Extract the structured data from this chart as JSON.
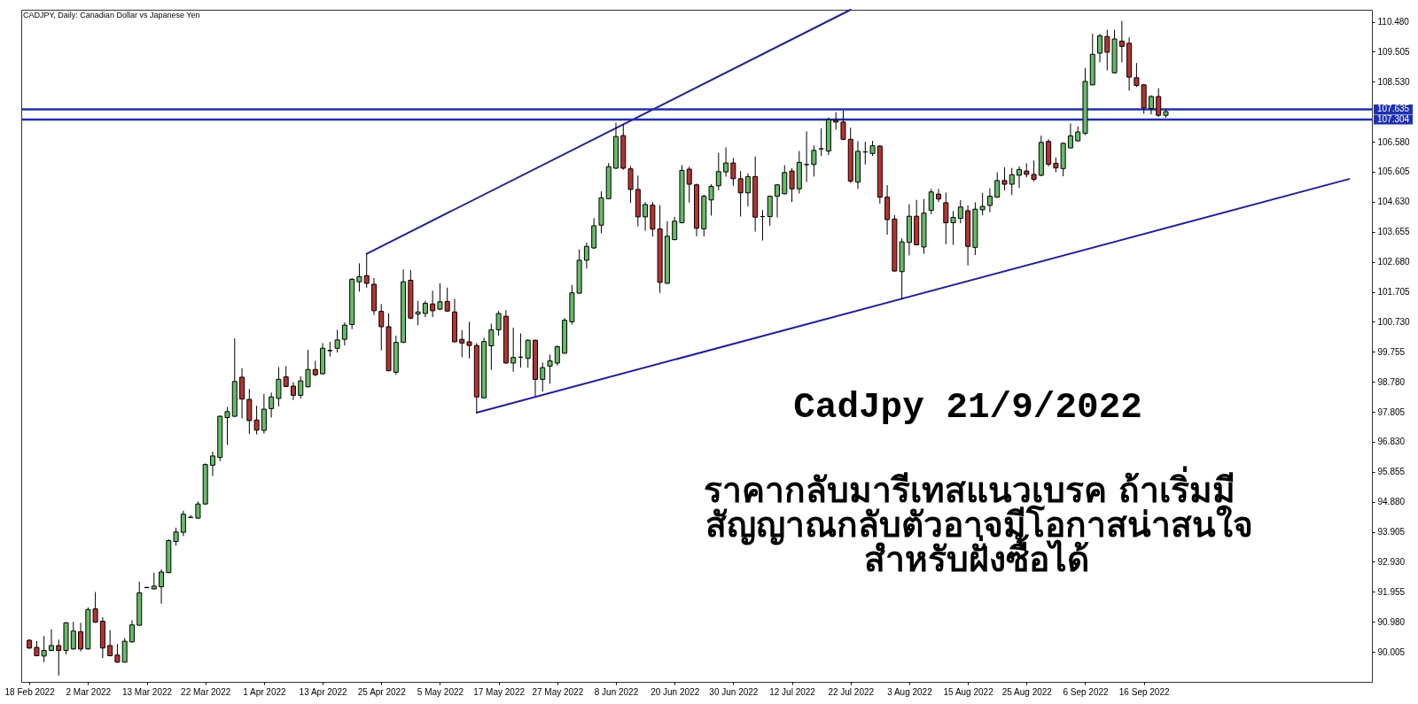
{
  "chart_data": {
    "type": "candlestick",
    "title": "CADJPY, Daily: Canadian Dollar vs Japanese Yen",
    "annotations": [
      "CadJpy 21/9/2022",
      "ราคากลับมารีเทสแนวเบรค ถ้าเริ่มมี",
      "สัญญาณกลับตัวอาจมีโอกาสน่าสนใจ",
      "สำหรับฝั่งซื้อได้"
    ],
    "categories": [
      "18 Feb 2022",
      null,
      null,
      null,
      null,
      null,
      null,
      null,
      "2 Mar 2022",
      null,
      null,
      null,
      null,
      null,
      null,
      null,
      "13 Mar 2022",
      null,
      null,
      null,
      null,
      null,
      null,
      null,
      "22 Mar 2022",
      null,
      null,
      null,
      null,
      null,
      null,
      null,
      "1 Apr 2022",
      null,
      null,
      null,
      null,
      null,
      null,
      null,
      "13 Apr 2022",
      null,
      null,
      null,
      null,
      null,
      null,
      null,
      "25 Apr 2022",
      null,
      null,
      null,
      null,
      null,
      null,
      null,
      "5 May 2022",
      null,
      null,
      null,
      null,
      null,
      null,
      null,
      "17 May 2022",
      null,
      null,
      null,
      null,
      null,
      null,
      null,
      "27 May 2022",
      null,
      null,
      null,
      null,
      null,
      null,
      null,
      "8 Jun 2022",
      null,
      null,
      null,
      null,
      null,
      null,
      null,
      "20 Jun 2022",
      null,
      null,
      null,
      null,
      null,
      null,
      null,
      "30 Jun 2022",
      null,
      null,
      null,
      null,
      null,
      null,
      null,
      "12 Jul 2022",
      null,
      null,
      null,
      null,
      null,
      null,
      null,
      "22 Jul 2022",
      null,
      null,
      null,
      null,
      null,
      null,
      null,
      "3 Aug 2022",
      null,
      null,
      null,
      null,
      null,
      null,
      null,
      "15 Aug 2022",
      null,
      null,
      null,
      null,
      null,
      null,
      null,
      "25 Aug 2022",
      null,
      null,
      null,
      null,
      null,
      null,
      null,
      "6 Sep 2022",
      null,
      null,
      null,
      null,
      null,
      null,
      null,
      "16 Sep 2022",
      null,
      null,
      null,
      null,
      null,
      null,
      null,
      null,
      null,
      null,
      null,
      null,
      null,
      null,
      null,
      null,
      null,
      null,
      null,
      null,
      null,
      null,
      null,
      null,
      null,
      null,
      null,
      null,
      null,
      null
    ],
    "ohlc": [
      [
        90.38,
        90.42,
        90.1,
        90.13
      ],
      [
        90.15,
        90.36,
        89.86,
        89.88
      ],
      [
        89.87,
        90.52,
        89.67,
        90.05
      ],
      [
        90.05,
        90.74,
        90.03,
        90.21
      ],
      [
        90.21,
        90.4,
        89.23,
        90.05
      ],
      [
        90.05,
        90.97,
        89.93,
        90.95
      ],
      [
        90.1,
        90.98,
        90.08,
        90.68
      ],
      [
        90.66,
        90.95,
        90.02,
        90.1
      ],
      [
        90.1,
        91.45,
        90.08,
        91.38
      ],
      [
        91.4,
        91.95,
        90.95,
        90.97
      ],
      [
        91.0,
        91.13,
        89.8,
        90.13
      ],
      [
        90.21,
        90.71,
        89.86,
        89.88
      ],
      [
        89.9,
        90.26,
        89.65,
        89.67
      ],
      [
        89.67,
        90.45,
        89.66,
        90.35
      ],
      [
        90.33,
        91.03,
        90.31,
        90.88
      ],
      [
        90.87,
        92.29,
        90.85,
        91.92
      ],
      [
        92.09,
        92.12,
        92.08,
        92.1
      ],
      [
        92.05,
        92.58,
        92.04,
        92.14
      ],
      [
        92.12,
        92.69,
        91.57,
        92.6
      ],
      [
        92.58,
        93.66,
        92.56,
        93.62
      ],
      [
        93.59,
        94.04,
        93.46,
        93.9
      ],
      [
        93.89,
        94.59,
        93.77,
        94.48
      ],
      [
        94.37,
        94.45,
        94.35,
        94.38
      ],
      [
        94.35,
        94.89,
        94.33,
        94.81
      ],
      [
        94.81,
        96.13,
        94.79,
        96.09
      ],
      [
        96.07,
        96.51,
        95.72,
        96.37
      ],
      [
        96.32,
        97.69,
        96.2,
        97.66
      ],
      [
        97.62,
        97.96,
        96.73,
        97.81
      ],
      [
        97.66,
        100.19,
        97.64,
        98.79
      ],
      [
        98.93,
        99.22,
        97.59,
        98.22
      ],
      [
        98.21,
        98.55,
        97.09,
        97.52
      ],
      [
        97.54,
        98.0,
        97.07,
        97.21
      ],
      [
        97.2,
        98.39,
        97.1,
        97.89
      ],
      [
        97.91,
        98.43,
        97.62,
        98.29
      ],
      [
        98.24,
        99.26,
        97.98,
        98.86
      ],
      [
        98.94,
        99.29,
        98.61,
        98.63
      ],
      [
        98.64,
        98.77,
        98.19,
        98.34
      ],
      [
        98.34,
        98.96,
        98.24,
        98.81
      ],
      [
        98.62,
        99.82,
        98.6,
        99.18
      ],
      [
        99.18,
        99.46,
        98.96,
        99.01
      ],
      [
        99.04,
        100.04,
        99.02,
        99.87
      ],
      [
        99.79,
        100.08,
        99.6,
        99.8
      ],
      [
        99.87,
        100.47,
        99.73,
        100.14
      ],
      [
        100.16,
        100.71,
        99.96,
        100.62
      ],
      [
        100.64,
        102.15,
        100.49,
        102.11
      ],
      [
        102.03,
        102.63,
        101.71,
        102.2
      ],
      [
        102.23,
        102.94,
        101.84,
        101.98
      ],
      [
        101.95,
        102.15,
        100.95,
        101.09
      ],
      [
        101.07,
        101.31,
        99.8,
        100.57
      ],
      [
        100.57,
        101.01,
        99.12,
        99.14
      ],
      [
        99.09,
        100.28,
        99.01,
        100.06
      ],
      [
        100.06,
        102.43,
        100.04,
        102.03
      ],
      [
        102.08,
        102.41,
        100.81,
        100.85
      ],
      [
        100.98,
        101.41,
        100.62,
        101.05
      ],
      [
        101.0,
        101.41,
        100.88,
        101.33
      ],
      [
        101.31,
        101.74,
        100.88,
        101.09
      ],
      [
        101.14,
        101.98,
        101.11,
        101.38
      ],
      [
        101.39,
        101.84,
        101.05,
        101.08
      ],
      [
        101.05,
        101.48,
        100.06,
        100.08
      ],
      [
        100.16,
        100.46,
        99.58,
        100.04
      ],
      [
        100.08,
        100.73,
        99.54,
        99.96
      ],
      [
        99.96,
        100.04,
        97.78,
        98.29
      ],
      [
        98.26,
        100.21,
        98.24,
        100.09
      ],
      [
        99.95,
        100.67,
        99.17,
        100.47
      ],
      [
        100.47,
        101.08,
        100.28,
        101.0
      ],
      [
        100.91,
        101.11,
        99.37,
        99.39
      ],
      [
        99.39,
        100.54,
        99.11,
        99.57
      ],
      [
        99.58,
        100.35,
        99.24,
        99.58
      ],
      [
        99.54,
        100.16,
        99.24,
        100.13
      ],
      [
        100.13,
        100.15,
        98.31,
        98.86
      ],
      [
        98.86,
        99.41,
        98.46,
        99.24
      ],
      [
        99.29,
        99.66,
        98.72,
        99.46
      ],
      [
        99.39,
        99.96,
        99.31,
        99.92
      ],
      [
        99.71,
        100.85,
        99.69,
        100.78
      ],
      [
        100.73,
        101.93,
        100.64,
        101.67
      ],
      [
        101.66,
        103.08,
        101.64,
        102.73
      ],
      [
        102.73,
        103.3,
        102.46,
        103.18
      ],
      [
        103.13,
        104.1,
        103.1,
        103.85
      ],
      [
        103.87,
        104.97,
        103.61,
        104.76
      ],
      [
        104.73,
        105.89,
        104.71,
        105.77
      ],
      [
        105.72,
        107.2,
        105.7,
        106.75
      ],
      [
        106.78,
        107.16,
        105.67,
        105.72
      ],
      [
        105.7,
        105.79,
        104.59,
        105.03
      ],
      [
        105.03,
        105.48,
        103.83,
        104.14
      ],
      [
        104.14,
        104.62,
        103.69,
        104.54
      ],
      [
        104.52,
        104.62,
        103.5,
        103.74
      ],
      [
        103.75,
        104.52,
        101.67,
        102.01
      ],
      [
        101.98,
        104.0,
        101.96,
        103.51
      ],
      [
        103.4,
        104.14,
        103.38,
        104.0
      ],
      [
        103.95,
        105.82,
        103.93,
        105.65
      ],
      [
        105.69,
        105.77,
        104.6,
        105.2
      ],
      [
        105.18,
        105.22,
        103.51,
        103.77
      ],
      [
        103.75,
        104.86,
        103.5,
        104.81
      ],
      [
        104.69,
        105.2,
        104.18,
        105.13
      ],
      [
        105.15,
        106.22,
        105.0,
        105.61
      ],
      [
        105.6,
        106.4,
        105.45,
        105.89
      ],
      [
        105.89,
        106.05,
        105.15,
        105.38
      ],
      [
        105.38,
        105.63,
        104.15,
        104.92
      ],
      [
        104.92,
        105.55,
        104.48,
        105.45
      ],
      [
        105.45,
        106.1,
        103.66,
        104.13
      ],
      [
        104.15,
        104.36,
        103.37,
        104.15
      ],
      [
        104.15,
        104.83,
        103.85,
        104.81
      ],
      [
        104.81,
        105.2,
        104.12,
        105.18
      ],
      [
        104.89,
        105.82,
        104.87,
        105.58
      ],
      [
        105.63,
        105.72,
        104.62,
        105.05
      ],
      [
        105.05,
        106.28,
        104.9,
        105.91
      ],
      [
        105.84,
        106.92,
        105.27,
        105.84
      ],
      [
        105.84,
        106.46,
        105.45,
        106.3
      ],
      [
        106.35,
        107.02,
        106.12,
        106.35
      ],
      [
        106.28,
        107.37,
        106.15,
        107.3
      ],
      [
        107.28,
        107.54,
        106.97,
        107.22
      ],
      [
        107.22,
        107.6,
        106.63,
        106.66
      ],
      [
        106.66,
        107.04,
        105.24,
        105.3
      ],
      [
        105.27,
        106.6,
        105.05,
        106.27
      ],
      [
        106.25,
        106.58,
        105.84,
        106.25
      ],
      [
        106.2,
        106.61,
        106.12,
        106.45
      ],
      [
        106.44,
        106.47,
        104.57,
        104.78
      ],
      [
        104.78,
        105.17,
        103.56,
        104.05
      ],
      [
        104.07,
        104.2,
        102.36,
        102.38
      ],
      [
        102.36,
        103.44,
        101.46,
        103.33
      ],
      [
        103.31,
        104.55,
        102.89,
        104.16
      ],
      [
        104.16,
        104.69,
        103.21,
        103.23
      ],
      [
        103.16,
        104.72,
        102.94,
        104.26
      ],
      [
        104.35,
        105.05,
        104.23,
        104.95
      ],
      [
        104.88,
        105.05,
        104.62,
        104.72
      ],
      [
        104.6,
        104.93,
        103.25,
        103.95
      ],
      [
        103.95,
        104.33,
        103.23,
        104.12
      ],
      [
        104.09,
        104.68,
        103.93,
        104.46
      ],
      [
        104.34,
        104.51,
        102.56,
        103.18
      ],
      [
        103.15,
        104.61,
        102.9,
        104.39
      ],
      [
        104.37,
        104.92,
        104.19,
        104.48
      ],
      [
        104.51,
        105.07,
        104.29,
        104.81
      ],
      [
        104.78,
        105.59,
        104.76,
        105.32
      ],
      [
        105.32,
        105.75,
        105.0,
        105.2
      ],
      [
        105.2,
        105.73,
        104.85,
        105.51
      ],
      [
        105.49,
        105.78,
        105.08,
        105.68
      ],
      [
        105.63,
        105.88,
        105.42,
        105.52
      ],
      [
        105.52,
        105.97,
        105.29,
        105.36
      ],
      [
        105.49,
        106.78,
        105.46,
        106.56
      ],
      [
        106.59,
        106.66,
        105.78,
        105.85
      ],
      [
        105.88,
        106.07,
        105.59,
        105.73
      ],
      [
        105.71,
        106.56,
        105.46,
        106.53
      ],
      [
        106.38,
        107.17,
        106.37,
        106.77
      ],
      [
        106.61,
        107.08,
        106.59,
        106.9
      ],
      [
        106.85,
        108.97,
        106.8,
        108.54
      ],
      [
        108.43,
        110.09,
        108.41,
        109.42
      ],
      [
        109.46,
        110.09,
        109.16,
        110.02
      ],
      [
        110.0,
        110.22,
        108.9,
        109.49
      ],
      [
        108.82,
        110.22,
        108.8,
        109.92
      ],
      [
        109.85,
        110.51,
        109.16,
        109.68
      ],
      [
        109.78,
        109.97,
        108.24,
        108.68
      ],
      [
        108.66,
        109.14,
        108.36,
        108.41
      ],
      [
        108.43,
        108.45,
        107.49,
        107.68
      ],
      [
        107.66,
        108.09,
        107.47,
        108.05
      ],
      [
        108.05,
        108.32,
        107.39,
        107.44
      ],
      [
        107.44,
        107.63,
        107.36,
        107.56
      ],
      null,
      null,
      null,
      null,
      null,
      null,
      null,
      null,
      null,
      null,
      null,
      null,
      null,
      null,
      null,
      null,
      null,
      null,
      null,
      null,
      null,
      null,
      null,
      null,
      null,
      null,
      null
    ],
    "colors": [
      "#b83230",
      "#b83230",
      "#66bb66",
      "#66bb66",
      "#b83230",
      "#66bb66",
      "#66bb66",
      "#b83230",
      "#66bb66",
      "#b83230",
      "#b83230",
      "#b83230",
      "#b83230",
      "#66bb66",
      "#66bb66",
      "#66bb66",
      "#66bb66",
      "#66bb66",
      "#66bb66",
      "#66bb66",
      "#66bb66",
      "#66bb66",
      "#66bb66",
      "#66bb66",
      "#66bb66",
      "#66bb66",
      "#66bb66",
      "#66bb66",
      "#66bb66",
      "#b83230",
      "#b83230",
      "#b83230",
      "#66bb66",
      "#66bb66",
      "#66bb66",
      "#b83230",
      "#b83230",
      "#66bb66",
      "#66bb66",
      "#b83230",
      "#66bb66",
      "#66bb66",
      "#66bb66",
      "#66bb66",
      "#66bb66",
      "#66bb66",
      "#b83230",
      "#b83230",
      "#b83230",
      "#b83230",
      "#66bb66",
      "#66bb66",
      "#b83230",
      "#66bb66",
      "#66bb66",
      "#b83230",
      "#66bb66",
      "#b83230",
      "#b83230",
      "#b83230",
      "#b83230",
      "#b83230",
      "#66bb66",
      "#66bb66",
      "#66bb66",
      "#b83230",
      "#66bb66",
      "#000000",
      "#66bb66",
      "#b83230",
      "#66bb66",
      "#66bb66",
      "#66bb66",
      "#66bb66",
      "#66bb66",
      "#66bb66",
      "#66bb66",
      "#66bb66",
      "#66bb66",
      "#66bb66",
      "#66bb66",
      "#b83230",
      "#b83230",
      "#b83230",
      "#66bb66",
      "#b83230",
      "#b83230",
      "#66bb66",
      "#66bb66",
      "#66bb66",
      "#b83230",
      "#b83230",
      "#66bb66",
      "#66bb66",
      "#66bb66",
      "#66bb66",
      "#b83230",
      "#b83230",
      "#66bb66",
      "#b83230",
      "#000000",
      "#66bb66",
      "#66bb66",
      "#66bb66",
      "#b83230",
      "#66bb66",
      "#000000",
      "#66bb66",
      "#000000",
      "#66bb66",
      "#b83230",
      "#b83230",
      "#b83230",
      "#66bb66",
      "#000000",
      "#66bb66",
      "#b83230",
      "#b83230",
      "#b83230",
      "#66bb66",
      "#66bb66",
      "#b83230",
      "#66bb66",
      "#66bb66",
      "#b83230",
      "#b83230",
      "#66bb66",
      "#66bb66",
      "#b83230",
      "#66bb66",
      "#66bb66",
      "#66bb66",
      "#66bb66",
      "#b83230",
      "#66bb66",
      "#66bb66",
      "#b83230",
      "#b83230",
      "#66bb66",
      "#b83230",
      "#b83230",
      "#66bb66",
      "#66bb66",
      "#66bb66",
      "#66bb66",
      "#66bb66",
      "#66bb66",
      "#b83230",
      "#66bb66",
      "#b83230",
      "#b83230",
      "#b83230",
      "#b83230",
      "#66bb66",
      "#b83230",
      "#66bb66",
      null,
      null,
      null,
      null,
      null,
      null,
      null,
      null,
      null,
      null,
      null,
      null,
      null,
      null,
      null,
      null,
      null,
      null,
      null,
      null,
      null,
      null,
      null,
      null,
      null,
      null,
      null
    ],
    "series": [
      {
        "type": "line",
        "color": "#20209a",
        "values": [
          null,
          null,
          null,
          null,
          null,
          null,
          null,
          null,
          null,
          null,
          null,
          null,
          null,
          null,
          null,
          null,
          null,
          null,
          null,
          null,
          null,
          null,
          null,
          null,
          null,
          null,
          null,
          null,
          null,
          null,
          null,
          null,
          null,
          null,
          null,
          null,
          null,
          null,
          null,
          null,
          null,
          null,
          null,
          null,
          null,
          null,
          102.94,
          null,
          null,
          null,
          null,
          null,
          null,
          null,
          null,
          null,
          null,
          null,
          null,
          null,
          null,
          null,
          null,
          null,
          null,
          null,
          null,
          null,
          null,
          null,
          null,
          null,
          null,
          null,
          null,
          null,
          null,
          null,
          null,
          null,
          null,
          null,
          null,
          null,
          null,
          null,
          null,
          null,
          null,
          null,
          null,
          null,
          null,
          null,
          null,
          null,
          null,
          null,
          null,
          null,
          null,
          null,
          null,
          null,
          null,
          null,
          null,
          null,
          null,
          null,
          null,
          null,
          110.87,
          null,
          null,
          null,
          null,
          null,
          null,
          null,
          null,
          null,
          null,
          null,
          null,
          null,
          null,
          null,
          null,
          null,
          null,
          null,
          null,
          null,
          null,
          null,
          null,
          null,
          null,
          null,
          null,
          null,
          null,
          null,
          null,
          null,
          null,
          null,
          null,
          null,
          null,
          null,
          null,
          null,
          null,
          null,
          null,
          null,
          null,
          null,
          null,
          null,
          null,
          null,
          null,
          null,
          null,
          null,
          null,
          null,
          null,
          null,
          null,
          null,
          null,
          null,
          null,
          null,
          null,
          null,
          null,
          null,
          null
        ]
      },
      {
        "type": "line",
        "color": "#20209a",
        "values": [
          null,
          null,
          null,
          null,
          null,
          null,
          null,
          null,
          null,
          null,
          null,
          null,
          null,
          null,
          null,
          null,
          null,
          null,
          null,
          null,
          null,
          null,
          null,
          null,
          null,
          null,
          null,
          null,
          null,
          null,
          null,
          null,
          null,
          null,
          null,
          null,
          null,
          null,
          null,
          null,
          null,
          null,
          null,
          null,
          null,
          null,
          null,
          null,
          null,
          null,
          null,
          null,
          null,
          null,
          null,
          null,
          null,
          null,
          null,
          null,
          null,
          97.78,
          null,
          null,
          null,
          null,
          null,
          null,
          null,
          null,
          null,
          null,
          null,
          null,
          null,
          null,
          null,
          null,
          null,
          null,
          null,
          null,
          null,
          null,
          null,
          null,
          null,
          null,
          null,
          null,
          null,
          null,
          null,
          null,
          null,
          null,
          null,
          null,
          null,
          null,
          null,
          null,
          null,
          null,
          null,
          null,
          null,
          null,
          null,
          null,
          null,
          null,
          null,
          null,
          null,
          null,
          null,
          null,
          null,
          null,
          null,
          null,
          null,
          null,
          null,
          null,
          null,
          null,
          null,
          null,
          null,
          null,
          null,
          null,
          null,
          null,
          null,
          null,
          null,
          null,
          null,
          null,
          null,
          null,
          null,
          null,
          null,
          null,
          null,
          null,
          null,
          null,
          null,
          null,
          null,
          null,
          null,
          null,
          null,
          null,
          null,
          null,
          null,
          null,
          null,
          null,
          null,
          null,
          null,
          null,
          null,
          null,
          null,
          null,
          null,
          null,
          null,
          null,
          null,
          null,
          105.37,
          null,
          null
        ]
      }
    ],
    "ref_lines": [
      {
        "axis": "y",
        "value": 107.635,
        "label": "107.635",
        "color": "#1f2fb0"
      },
      {
        "axis": "y",
        "value": 107.304,
        "label": "107.304",
        "color": "#1f2fb0"
      }
    ],
    "ylim": [
      89.03,
      110.87
    ],
    "yticks": [
      {
        "value": 110.48,
        "label": "110.480"
      },
      {
        "value": 109.505,
        "label": "109.505"
      },
      {
        "value": 108.53,
        "label": "108.530"
      },
      {
        "value": 106.58,
        "label": "106.580"
      },
      {
        "value": 105.605,
        "label": "105.605"
      },
      {
        "value": 104.63,
        "label": "104.630"
      },
      {
        "value": 103.655,
        "label": "103.655"
      },
      {
        "value": 102.68,
        "label": "102.680"
      },
      {
        "value": 101.705,
        "label": "101.705"
      },
      {
        "value": 100.73,
        "label": "100.730"
      },
      {
        "value": 99.755,
        "label": "99.755"
      },
      {
        "value": 98.78,
        "label": "98.780"
      },
      {
        "value": 97.805,
        "label": "97.805"
      },
      {
        "value": 96.83,
        "label": "96.830"
      },
      {
        "value": 95.855,
        "label": "95.855"
      },
      {
        "value": 94.88,
        "label": "94.880"
      },
      {
        "value": 93.905,
        "label": "93.905"
      },
      {
        "value": 92.93,
        "label": "92.930"
      },
      {
        "value": 91.955,
        "label": "91.955"
      },
      {
        "value": 90.98,
        "label": "90.980"
      },
      {
        "value": 90.005,
        "label": "90.005"
      }
    ]
  }
}
